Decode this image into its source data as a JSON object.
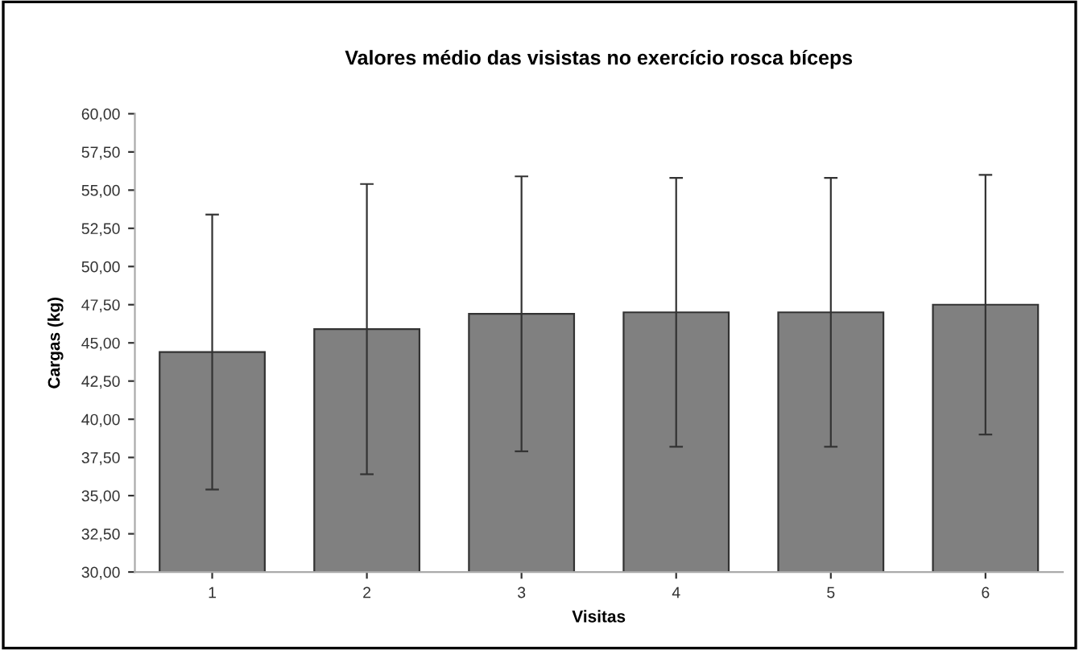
{
  "chart_data": {
    "type": "bar",
    "title": "Valores médio das visistas no exercício rosca bíceps",
    "xlabel": "Visitas",
    "ylabel": "Cargas (kg)",
    "categories": [
      "1",
      "2",
      "3",
      "4",
      "5",
      "6"
    ],
    "values": [
      44.4,
      45.9,
      46.9,
      47.0,
      47.0,
      47.5
    ],
    "errors": [
      9.0,
      9.5,
      9.0,
      8.8,
      8.8,
      8.5
    ],
    "color": "#808080",
    "ylim": [
      30,
      60
    ],
    "yticks": [
      {
        "value": 30,
        "label": "30,00"
      },
      {
        "value": 32.5,
        "label": "32,50"
      },
      {
        "value": 35,
        "label": "35,00"
      },
      {
        "value": 37.5,
        "label": "37,50"
      },
      {
        "value": 40,
        "label": "40,00"
      },
      {
        "value": 42.5,
        "label": "42,50"
      },
      {
        "value": 45,
        "label": "45,00"
      },
      {
        "value": 47.5,
        "label": "47,50"
      },
      {
        "value": 50,
        "label": "50,00"
      },
      {
        "value": 52.5,
        "label": "52,50"
      },
      {
        "value": 55,
        "label": "55,00"
      },
      {
        "value": 57.5,
        "label": "57,50"
      },
      {
        "value": 60,
        "label": "60,00"
      }
    ],
    "grid": false,
    "legend": false
  }
}
